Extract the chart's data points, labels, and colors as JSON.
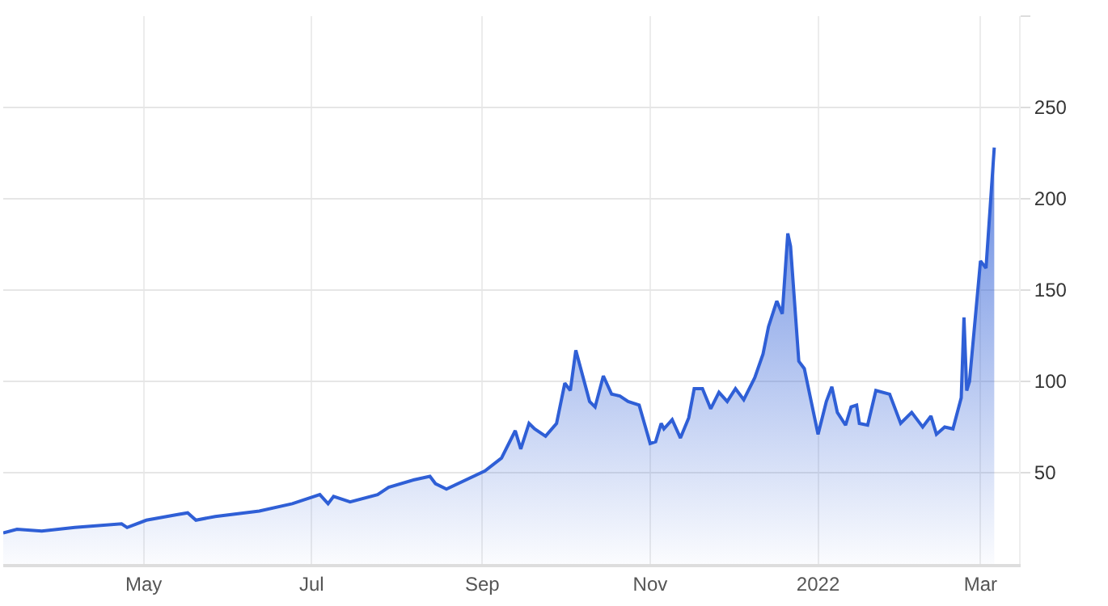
{
  "chart_data": {
    "type": "area",
    "color": "#2f5fd6",
    "grid": true,
    "legend": false,
    "marker": "none",
    "line_style": "solid",
    "xlim": [
      "2021-03-11",
      "2022-03-15"
    ],
    "xticks": [
      {
        "value": "2021-05-01",
        "label": "May"
      },
      {
        "value": "2021-07-01",
        "label": "Jul"
      },
      {
        "value": "2021-09-01",
        "label": "Sep"
      },
      {
        "value": "2021-11-01",
        "label": "Nov"
      },
      {
        "value": "2022-01-01",
        "label": "2022"
      },
      {
        "value": "2022-03-01",
        "label": "Mar"
      }
    ],
    "ylim": [
      0,
      300
    ],
    "yticks": [
      50,
      100,
      150,
      200,
      250,
      {
        "value": 300,
        "label": null
      }
    ],
    "x": [
      "2021-03-11",
      "2021-03-16",
      "2021-03-25",
      "2021-04-06",
      "2021-04-23",
      "2021-04-25",
      "2021-05-02",
      "2021-05-13",
      "2021-05-17",
      "2021-05-20",
      "2021-05-27",
      "2021-06-12",
      "2021-06-24",
      "2021-07-04",
      "2021-07-07",
      "2021-07-09",
      "2021-07-15",
      "2021-07-25",
      "2021-07-29",
      "2021-08-07",
      "2021-08-13",
      "2021-08-15",
      "2021-08-19",
      "2021-09-02",
      "2021-09-08",
      "2021-09-13",
      "2021-09-15",
      "2021-09-18",
      "2021-09-20",
      "2021-09-24",
      "2021-09-28",
      "2021-10-01",
      "2021-10-03",
      "2021-10-05",
      "2021-10-10",
      "2021-10-12",
      "2021-10-15",
      "2021-10-18",
      "2021-10-21",
      "2021-10-24",
      "2021-10-28",
      "2021-11-01",
      "2021-11-03",
      "2021-11-05",
      "2021-11-06",
      "2021-11-09",
      "2021-11-12",
      "2021-11-15",
      "2021-11-17",
      "2021-11-20",
      "2021-11-23",
      "2021-11-26",
      "2021-11-29",
      "2021-12-02",
      "2021-12-05",
      "2021-12-09",
      "2021-12-12",
      "2021-12-14",
      "2021-12-17",
      "2021-12-19",
      "2021-12-21",
      "2021-12-22",
      "2021-12-25",
      "2021-12-27",
      "2022-01-01",
      "2022-01-04",
      "2022-01-06",
      "2022-01-08",
      "2022-01-11",
      "2022-01-13",
      "2022-01-15",
      "2022-01-16",
      "2022-01-19",
      "2022-01-22",
      "2022-01-27",
      "2022-01-31",
      "2022-02-04",
      "2022-02-08",
      "2022-02-11",
      "2022-02-13",
      "2022-02-16",
      "2022-02-19",
      "2022-02-22",
      "2022-02-23",
      "2022-02-24",
      "2022-02-25",
      "2022-03-01",
      "2022-03-03",
      "2022-03-06"
    ],
    "values": [
      17,
      19,
      18,
      20,
      22,
      20,
      24,
      27,
      28,
      24,
      26,
      29,
      33,
      38,
      33,
      37,
      34,
      38,
      42,
      46,
      48,
      44,
      41,
      51,
      58,
      73,
      63,
      77,
      74,
      70,
      77,
      99,
      95,
      117,
      89,
      86,
      103,
      93,
      92,
      89,
      87,
      66,
      67,
      77,
      74,
      79,
      69,
      80,
      96,
      96,
      85,
      94,
      89,
      96,
      90,
      102,
      115,
      130,
      144,
      137,
      181,
      174,
      111,
      107,
      71,
      89,
      97,
      83,
      76,
      86,
      87,
      77,
      76,
      95,
      93,
      77,
      83,
      75,
      81,
      71,
      75,
      74,
      91,
      135,
      95,
      100,
      166,
      162,
      228
    ]
  }
}
